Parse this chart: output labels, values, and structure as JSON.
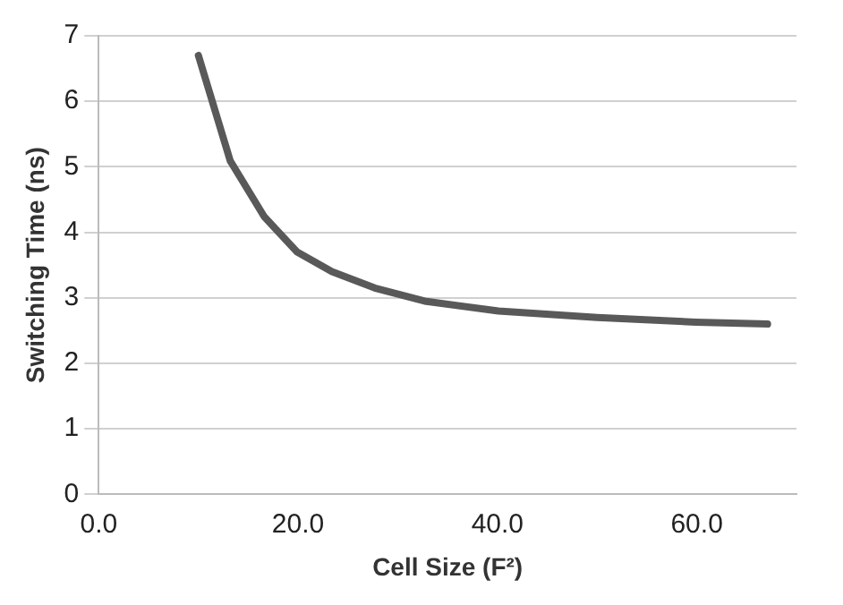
{
  "chart_data": {
    "type": "line",
    "xlabel": "Cell Size (F²)",
    "ylabel": "Switching Time (ns)",
    "x": [
      10,
      13.2,
      16.6,
      19.9,
      23.4,
      27.7,
      32.7,
      40.1,
      50,
      59.9,
      67.1
    ],
    "series": [
      {
        "color": "#595959",
        "values": [
          6.7,
          5.09,
          4.24,
          3.7,
          3.4,
          3.15,
          2.95,
          2.8,
          2.7,
          2.63,
          2.6
        ]
      }
    ],
    "xlim": [
      0,
      70
    ],
    "xticks": [
      {
        "value": 0,
        "label": "0.0"
      },
      {
        "value": 20,
        "label": "20.0"
      },
      {
        "value": 40,
        "label": "40.0"
      },
      {
        "value": 60,
        "label": "60.0"
      }
    ],
    "ylim": [
      0,
      7
    ],
    "yticks": [
      0,
      1,
      2,
      3,
      4,
      5,
      6,
      7
    ],
    "grid": "y",
    "legend": false,
    "marker": "none",
    "line_style": "solid"
  }
}
